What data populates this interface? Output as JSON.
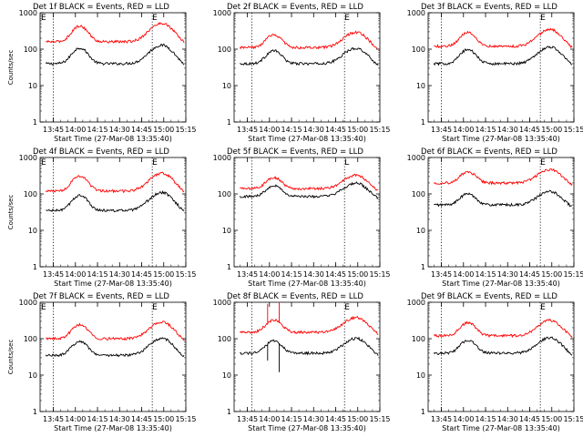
{
  "chart_data": [
    {
      "type": "line",
      "title": "Det 1f BLACK = Events, RED = LLD",
      "ylabel": "Counts/sec",
      "xlabel": "Start Time (27-Mar-08 13:35:40)",
      "xticks": [
        "13:45",
        "14:00",
        "14:15",
        "14:30",
        "14:45",
        "15:00",
        "15:15"
      ],
      "yticks": [
        "1",
        "10",
        "100",
        "1000"
      ],
      "xrange": [
        13.6,
        15.25
      ],
      "ylim": [
        1,
        1000
      ],
      "yscale": "log",
      "scale": 1.0,
      "spikes": [],
      "vlines": [
        {
          "x": 13.75,
          "marker": ""
        },
        {
          "x": 14.87,
          "marker": "E"
        }
      ],
      "top_marker_left": "E",
      "series": [
        {
          "name": "Events",
          "color": "#000000",
          "base": 40
        },
        {
          "name": "LLD",
          "color": "#ff0000",
          "base": 160
        }
      ]
    },
    {
      "type": "line",
      "title": "Det 2f BLACK = Events, RED = LLD",
      "ylabel": "",
      "xlabel": "Start Time (27-Mar-08 13:35:40)",
      "xticks": [
        "13:45",
        "14:00",
        "14:15",
        "14:30",
        "14:45",
        "15:00",
        "15:15"
      ],
      "yticks": [
        "1",
        "10",
        "100",
        "1000"
      ],
      "xrange": [
        13.6,
        15.25
      ],
      "ylim": [
        1,
        1000
      ],
      "yscale": "log",
      "scale": 0.75,
      "spikes": [],
      "vlines": [
        {
          "x": 13.8,
          "marker": ""
        },
        {
          "x": 14.85,
          "marker": "E"
        }
      ],
      "top_marker_left": "",
      "series": [
        {
          "name": "Events",
          "color": "#000000",
          "base": 40
        },
        {
          "name": "LLD",
          "color": "#ff0000",
          "base": 110
        }
      ]
    },
    {
      "type": "line",
      "title": "Det 3f BLACK = Events, RED = LLD",
      "ylabel": "",
      "xlabel": "Start Time (27-Mar-08 13:35:40)",
      "xticks": [
        "13:45",
        "14:00",
        "14:15",
        "14:30",
        "14:45",
        "15:00",
        "15:15"
      ],
      "yticks": [
        "1",
        "10",
        "100",
        "1000"
      ],
      "xrange": [
        13.6,
        15.25
      ],
      "ylim": [
        1,
        1000
      ],
      "yscale": "log",
      "scale": 0.85,
      "spikes": [],
      "vlines": [
        {
          "x": 13.75,
          "marker": ""
        },
        {
          "x": 14.87,
          "marker": "E"
        }
      ],
      "top_marker_left": "",
      "series": [
        {
          "name": "Events",
          "color": "#000000",
          "base": 40
        },
        {
          "name": "LLD",
          "color": "#ff0000",
          "base": 120
        }
      ]
    },
    {
      "type": "line",
      "title": "Det 4f BLACK = Events, RED = LLD",
      "ylabel": "Counts/sec",
      "xlabel": "Start Time (27-Mar-08 13:35:40)",
      "xticks": [
        "13:45",
        "14:00",
        "14:15",
        "14:30",
        "14:45",
        "15:00",
        "15:15"
      ],
      "yticks": [
        "1",
        "10",
        "100",
        "1000"
      ],
      "xrange": [
        13.6,
        15.25
      ],
      "ylim": [
        1,
        1000
      ],
      "yscale": "log",
      "scale": 0.95,
      "spikes": [],
      "vlines": [
        {
          "x": 13.75,
          "marker": ""
        },
        {
          "x": 14.87,
          "marker": "E"
        }
      ],
      "top_marker_left": "E",
      "series": [
        {
          "name": "Events",
          "color": "#000000",
          "base": 35
        },
        {
          "name": "LLD",
          "color": "#ff0000",
          "base": 120
        }
      ]
    },
    {
      "type": "line",
      "title": "Det 5f BLACK = Events, RED = LLD",
      "ylabel": "",
      "xlabel": "Start Time (27-Mar-08 13:35:40)",
      "xticks": [
        "13:45",
        "14:00",
        "14:15",
        "14:30",
        "14:45",
        "15:00",
        "15:15"
      ],
      "yticks": [
        "1",
        "10",
        "100",
        "1000"
      ],
      "xrange": [
        13.6,
        15.25
      ],
      "ylim": [
        1,
        1000
      ],
      "yscale": "log",
      "scale": 0.6,
      "spikes": [],
      "vlines": [
        {
          "x": 13.8,
          "marker": ""
        },
        {
          "x": 14.85,
          "marker": "L"
        }
      ],
      "top_marker_left": "",
      "series": [
        {
          "name": "Events",
          "color": "#000000",
          "base": 85
        },
        {
          "name": "LLD",
          "color": "#ff0000",
          "base": 140
        }
      ]
    },
    {
      "type": "line",
      "title": "Det 6f BLACK = Events, RED = LLD",
      "ylabel": "",
      "xlabel": "Start Time (27-Mar-08 13:35:40)",
      "xticks": [
        "13:45",
        "14:00",
        "14:15",
        "14:30",
        "14:45",
        "15:00",
        "15:15"
      ],
      "yticks": [
        "1",
        "10",
        "100",
        "1000"
      ],
      "xrange": [
        13.6,
        15.25
      ],
      "ylim": [
        1,
        1000
      ],
      "yscale": "log",
      "scale": 0.6,
      "spikes": [],
      "vlines": [
        {
          "x": 13.75,
          "marker": ""
        },
        {
          "x": 14.87,
          "marker": "E"
        }
      ],
      "top_marker_left": "",
      "series": [
        {
          "name": "Events",
          "color": "#000000",
          "base": 50
        },
        {
          "name": "LLD",
          "color": "#ff0000",
          "base": 200
        }
      ]
    },
    {
      "type": "line",
      "title": "Det 7f BLACK = Events, RED = LLD",
      "ylabel": "Counts/sec",
      "xlabel": "Start Time (27-Mar-08 13:35:40)",
      "xticks": [
        "13:45",
        "14:00",
        "14:15",
        "14:30",
        "14:45",
        "15:00",
        "15:15"
      ],
      "yticks": [
        "1",
        "10",
        "100",
        "1000"
      ],
      "xrange": [
        13.6,
        15.25
      ],
      "ylim": [
        1,
        1000
      ],
      "yscale": "log",
      "scale": 0.85,
      "spikes": [],
      "vlines": [
        {
          "x": 13.75,
          "marker": ""
        },
        {
          "x": 14.87,
          "marker": "E"
        }
      ],
      "top_marker_left": "E",
      "series": [
        {
          "name": "Events",
          "color": "#000000",
          "base": 35
        },
        {
          "name": "LLD",
          "color": "#ff0000",
          "base": 100
        }
      ]
    },
    {
      "type": "line",
      "title": "Det 8f BLACK = Events, RED = LLD",
      "ylabel": "",
      "xlabel": "Start Time (27-Mar-08 13:35:40)",
      "xticks": [
        "13:45",
        "14:00",
        "14:15",
        "14:30",
        "14:45",
        "15:00",
        "15:15"
      ],
      "yticks": [
        "1",
        "10",
        "100",
        "1000"
      ],
      "xrange": [
        13.6,
        15.25
      ],
      "ylim": [
        1,
        1000
      ],
      "yscale": "log",
      "scale": 0.7,
      "spikes": [
        {
          "x": 13.98,
          "lld": 900,
          "ev": 25
        },
        {
          "x": 14.11,
          "lld": 1000,
          "ev": 12
        }
      ],
      "vlines": [
        {
          "x": 13.8,
          "marker": ""
        },
        {
          "x": 14.85,
          "marker": "E"
        }
      ],
      "top_marker_left": "",
      "series": [
        {
          "name": "Events",
          "color": "#000000",
          "base": 40
        },
        {
          "name": "LLD",
          "color": "#ff0000",
          "base": 150
        }
      ]
    },
    {
      "type": "line",
      "title": "Det 9f BLACK = Events, RED = LLD",
      "ylabel": "",
      "xlabel": "Start Time (27-Mar-08 13:35:40)",
      "xticks": [
        "13:45",
        "14:00",
        "14:15",
        "14:30",
        "14:45",
        "15:00",
        "15:15"
      ],
      "yticks": [
        "1",
        "10",
        "100",
        "1000"
      ],
      "xrange": [
        13.6,
        15.25
      ],
      "ylim": [
        1,
        1000
      ],
      "yscale": "log",
      "scale": 0.75,
      "spikes": [],
      "vlines": [
        {
          "x": 13.75,
          "marker": ""
        },
        {
          "x": 14.87,
          "marker": "E"
        }
      ],
      "top_marker_left": "",
      "series": [
        {
          "name": "Events",
          "color": "#000000",
          "base": 40
        },
        {
          "name": "LLD",
          "color": "#ff0000",
          "base": 120
        }
      ]
    }
  ]
}
